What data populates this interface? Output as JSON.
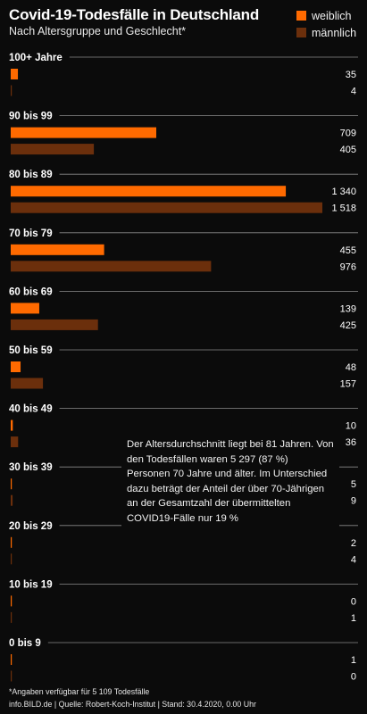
{
  "title": "Covid-19-Todesfälle in Deutschland",
  "subtitle": "Nach Altersgruppe und Geschlecht*",
  "legend": [
    {
      "label": "weiblich",
      "color": "#ff6a00"
    },
    {
      "label": "männlich",
      "color": "#6b2f0c"
    }
  ],
  "note": "Der Altersdurchschnitt liegt bei 81 Jahren. Von den Todesfällen waren 5 297 (87 %) Personen 70 Jahre und älter. Im Unterschied dazu beträgt der Anteil der über 70-Jährigen an der Gesamtzahl der übermittelten COVID19-Fälle nur 19 %",
  "footnote": "*Angaben verfügbar für 5 109 Todesfälle",
  "source": "info.BILD.de | Quelle: Robert-Koch-Institut | Stand: 30.4.2020, 0.00 Uhr",
  "chart_data": {
    "type": "bar",
    "orientation": "horizontal",
    "categories": [
      "100+ Jahre",
      "90 bis 99",
      "80 bis 89",
      "70 bis 79",
      "60 bis 69",
      "50 bis 59",
      "40 bis 49",
      "30 bis 39",
      "20 bis 29",
      "10 bis 19",
      "0 bis 9"
    ],
    "value_labels": {
      "weiblich": [
        "35",
        "709",
        "1 340",
        "455",
        "139",
        "48",
        "10",
        "5",
        "2",
        "0",
        "1"
      ],
      "männlich": [
        "4",
        "405",
        "1 518",
        "976",
        "425",
        "157",
        "36",
        "9",
        "4",
        "1",
        "0"
      ]
    },
    "series": [
      {
        "name": "weiblich",
        "color": "#ff6a00",
        "values": [
          35,
          709,
          1340,
          455,
          139,
          48,
          10,
          5,
          2,
          0,
          1
        ]
      },
      {
        "name": "männlich",
        "color": "#6b2f0c",
        "values": [
          4,
          405,
          1518,
          976,
          425,
          157,
          36,
          9,
          4,
          1,
          0
        ]
      }
    ],
    "xlim": [
      0,
      1518
    ]
  }
}
